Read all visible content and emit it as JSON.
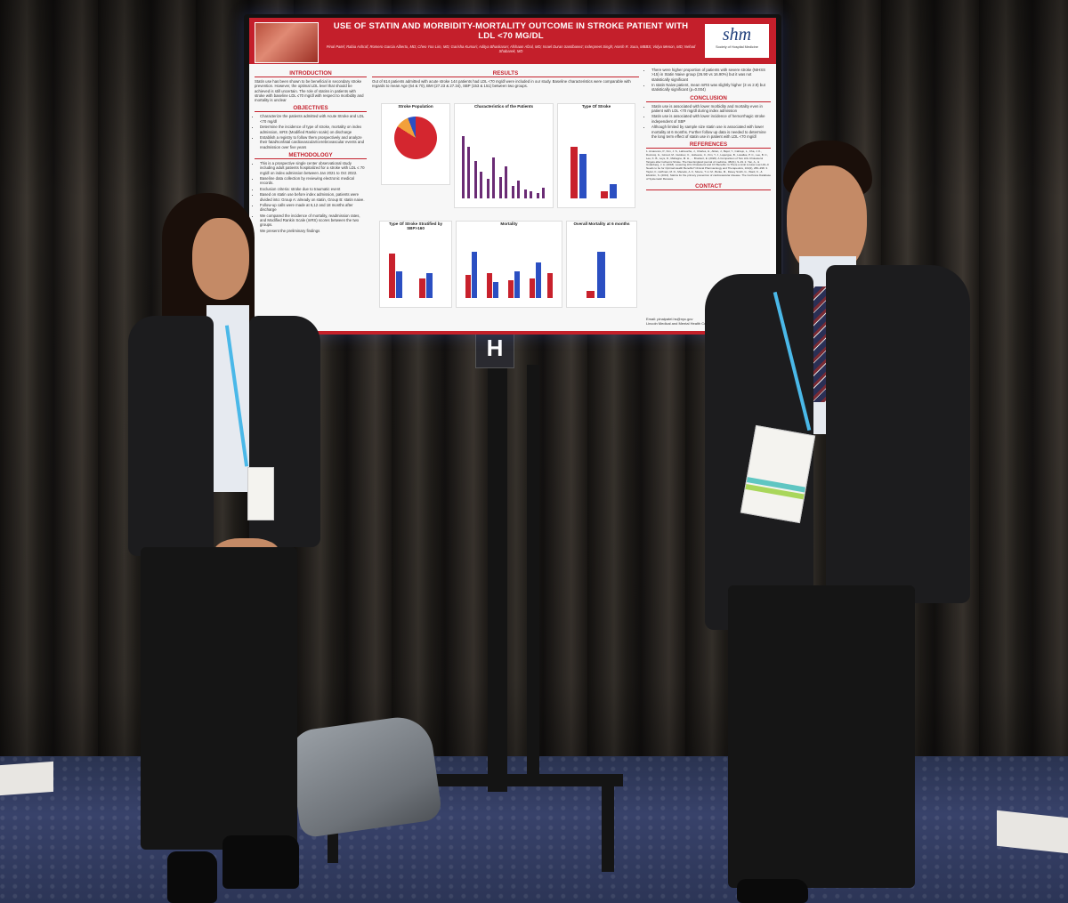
{
  "poster": {
    "title": "USE OF STATIN AND MORBIDITY-MORTALITY OUTCOME IN STROKE PATIENT WITH LDL <70 MG/DL",
    "authors": "Pinal Patel; Rabia Ashraf; Romero Garcia Alberto, MD; Cheo Yoo Lim, MD; Garisha Kumari; Aditya Bhaskaran; Afshaan Afzal, MD; Israel Duran Santibanez; Inderpreet Singh; Harsh R. Sura, MBBS; Vidya Menon, MD; Nehad Shabarek, MD",
    "logo": "shm",
    "logo_subtitle": "Society of Hospital Medicine",
    "sections": {
      "introduction": "INTRODUCTION",
      "introduction_text": "Statin use has been shown to be beneficial in secondary stroke prevention. However, the optimal LDL level that should be achieved is still uncertain. The role of statins in patients with stroke with baseline LDL ≤70 mg/dl with respect to morbidity and mortality is unclear",
      "objectives": "OBJECTIVES",
      "objectives_items": [
        "Characterize the patients admitted with Acute Stroke and LDL <70 mg/dl",
        "Determine the incidence of type of stroke, mortality on index admission, mRS (Modified Rankin scale) on discharge",
        "Establish a registry to follow them prospectively and analyze their fatal/nonfatal cardiovascular/cerebrovascular events and readmission over five years"
      ],
      "methodology": "METHODOLOGY",
      "methodology_items": [
        "This is a prospective single center observational study including adult patients hospitalized for a stroke with LDL ≤ 70 mg/dl on index admission between Jan 2021 to Oct 2022.",
        "Baseline data collection by reviewing electronic medical records.",
        "Exclusion criteria: stroke due to traumatic event",
        "Based on statin use before index admission, patients were divided into: Group A: already on statin, Group B: statin naive.",
        "Follow-up calls were made at 6,12 and 18 months after discharge",
        "We compared the incidence of mortality, readmission rates, and Modified Rankin Scale (mRS) scores between the two groups.",
        "We present the preliminary findings"
      ],
      "results": "RESULTS",
      "results_text": "Out of 614 patients admitted with acute stroke 144 patients had LDL <70 mg/dl were included in our study. Baseline characteristics were comparable with regards to mean Age (64 & 70), BMI (27.23 & 27.34), SBP (153 & 151) between two groups.",
      "conclusion": "CONCLUSION",
      "right_text_items": [
        "There were higher proportion of patients with severe stroke (NIHSS >15) in Statin Naive group (26.90 vs 16.90%) but it was not statistically significant",
        "In statin Naive patient, mean mRS was slightly higher (3 vs 2.9) but statistically significant (p=0.004)"
      ],
      "conclusion_items": [
        "Statin use is associated with lower morbidity and mortality even in patient with LDL <70 mg/dl during index admission",
        "Statin use is associated with lower incidence of hemorrhagic stroke independent of SBP",
        "Although limited by sample size statin use is associated with lower mortality at 6 months. Further follow up data is needed to determine the long term effect of statin use in patient with LDL <70 mg/dl"
      ],
      "references": "REFERENCES",
      "references_text": "1. Amarenco, P., Kim, J. S., Labreuche, J., Charles, H., Abtan, J., Bejot, Y., Cabrejo, L., Cha, J. K., Ducrocq, G., Giroud, M., Guidoux, C., Hobeanu, C., Kim, Y. J., Lapergue, B., Lavallée, P. C., Lee, B. C., Lee, K. B., Leys, D., Mahagne, M. H., ... Bruckert, E. (2020). A Comparison of Two LDL Cholesterol Targets after Ischemic Stroke. The New England journal of medicine, 382(1), 9–19. 2. Yan, A., & Underberg, J. A. (2018). Lowering LDL Cholesterol and CV Benefits: Is There a Limit to How Low LDL-C Needs to be for Optimal Health Benefits? Clinical Pharmacology and Therapeutics, 104(2), 280–298. 3. Taylor, F., Huffman, M. D., Macedo, A. F., Moore, T. H. M., Burke, M., Davey Smith, G., Ward, K., & Ebrahim, S. (2013). Statins for the primary prevention of cardiovascular disease. The Cochrane Database of Systematic Reviews.",
      "contact": "CONTACT",
      "email": "Email: pinalpatel.hs@nyc.gov",
      "institution": "Lincoln Medical and Mental Health Center"
    },
    "charts": {
      "stroke_population": "Stroke Population",
      "characteristics": "Characteristics of the Patients",
      "type_of_stroke": "Type Of Stroke",
      "type_sbp": "Type Of Stroke Stratified by SBP>160",
      "mortality": "Mortality",
      "overall_mortality": "Overall Mortality at 6 months"
    }
  },
  "sign": "H",
  "colors": {
    "poster_red": "#c41f2b",
    "bar_red": "#c8212c",
    "bar_blue": "#2b4fc2",
    "drape": "#2a2622"
  }
}
